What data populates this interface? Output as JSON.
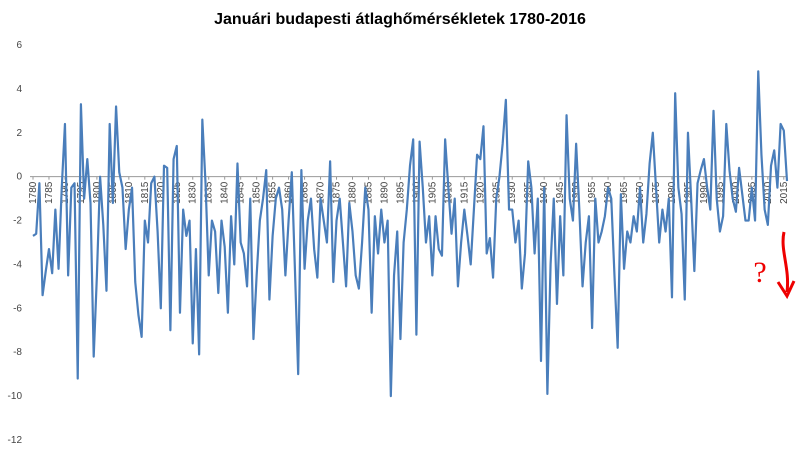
{
  "chart_data": {
    "type": "line",
    "title": "Januári budapesti átlaghőmérsékletek 1780-2016",
    "x": [
      1780,
      1781,
      1782,
      1783,
      1784,
      1785,
      1786,
      1787,
      1788,
      1789,
      1790,
      1791,
      1792,
      1793,
      1794,
      1795,
      1796,
      1797,
      1798,
      1799,
      1800,
      1801,
      1802,
      1803,
      1804,
      1805,
      1806,
      1807,
      1808,
      1809,
      1810,
      1811,
      1812,
      1813,
      1814,
      1815,
      1816,
      1817,
      1818,
      1819,
      1820,
      1821,
      1822,
      1823,
      1824,
      1825,
      1826,
      1827,
      1828,
      1829,
      1830,
      1831,
      1832,
      1833,
      1834,
      1835,
      1836,
      1837,
      1838,
      1839,
      1840,
      1841,
      1842,
      1843,
      1844,
      1845,
      1846,
      1847,
      1848,
      1849,
      1850,
      1851,
      1852,
      1853,
      1854,
      1855,
      1856,
      1857,
      1858,
      1859,
      1860,
      1861,
      1862,
      1863,
      1864,
      1865,
      1866,
      1867,
      1868,
      1869,
      1870,
      1871,
      1872,
      1873,
      1874,
      1875,
      1876,
      1877,
      1878,
      1879,
      1880,
      1881,
      1882,
      1883,
      1884,
      1885,
      1886,
      1887,
      1888,
      1889,
      1890,
      1891,
      1892,
      1893,
      1894,
      1895,
      1896,
      1897,
      1898,
      1899,
      1900,
      1901,
      1902,
      1903,
      1904,
      1905,
      1906,
      1907,
      1908,
      1909,
      1910,
      1911,
      1912,
      1913,
      1914,
      1915,
      1916,
      1917,
      1918,
      1919,
      1920,
      1921,
      1922,
      1923,
      1924,
      1925,
      1926,
      1927,
      1928,
      1929,
      1930,
      1931,
      1932,
      1933,
      1934,
      1935,
      1936,
      1937,
      1938,
      1939,
      1940,
      1941,
      1942,
      1943,
      1944,
      1945,
      1946,
      1947,
      1948,
      1949,
      1950,
      1951,
      1952,
      1953,
      1954,
      1955,
      1956,
      1957,
      1958,
      1959,
      1960,
      1961,
      1962,
      1963,
      1964,
      1965,
      1966,
      1967,
      1968,
      1969,
      1970,
      1971,
      1972,
      1973,
      1974,
      1975,
      1976,
      1977,
      1978,
      1979,
      1980,
      1981,
      1982,
      1983,
      1984,
      1985,
      1986,
      1987,
      1988,
      1989,
      1990,
      1991,
      1992,
      1993,
      1994,
      1995,
      1996,
      1997,
      1998,
      1999,
      2000,
      2001,
      2002,
      2003,
      2004,
      2005,
      2006,
      2007,
      2008,
      2009,
      2010,
      2011,
      2012,
      2013,
      2014,
      2015,
      2016
    ],
    "values": [
      -2.7,
      -2.6,
      -0.3,
      -5.4,
      -4.3,
      -3.3,
      -4.4,
      -1.5,
      -4.2,
      -0.5,
      2.4,
      -4.5,
      -0.5,
      -0.3,
      -9.2,
      3.3,
      -1.0,
      0.8,
      -1.2,
      -8.2,
      -4.5,
      0.0,
      -2.2,
      -5.2,
      2.4,
      -1.2,
      3.2,
      0.2,
      -0.5,
      -3.3,
      -1.5,
      -0.5,
      -4.8,
      -6.3,
      -7.3,
      -2.0,
      -3.0,
      -0.3,
      0.0,
      -2.5,
      -6.0,
      0.5,
      0.4,
      -7.0,
      0.8,
      1.4,
      -6.2,
      -1.5,
      -2.7,
      -2.0,
      -7.6,
      -3.3,
      -8.1,
      2.6,
      -0.3,
      -4.5,
      -2.0,
      -2.5,
      -5.3,
      -2.0,
      -3.2,
      -6.2,
      -1.8,
      -4.0,
      0.6,
      -3.0,
      -3.5,
      -5.0,
      -1.0,
      -7.4,
      -4.5,
      -2.0,
      -1.0,
      0.3,
      -5.6,
      -2.7,
      -1.0,
      -0.5,
      -1.5,
      -4.5,
      -2.0,
      0.2,
      -4.3,
      -9.0,
      0.3,
      -4.2,
      -2.0,
      -1.0,
      -3.3,
      -4.6,
      -1.0,
      -2.0,
      -3.0,
      0.7,
      -4.8,
      -2.0,
      -1.0,
      -3.0,
      -5.0,
      -1.2,
      -2.5,
      -4.5,
      -5.1,
      -3.0,
      -0.5,
      -1.5,
      -6.2,
      -1.8,
      -3.5,
      -1.5,
      -3.0,
      -2.0,
      -10.0,
      -4.5,
      -2.5,
      -7.4,
      -3.0,
      -1.5,
      0.5,
      1.7,
      -7.2,
      1.6,
      -0.5,
      -3.0,
      -1.8,
      -4.5,
      -1.8,
      -3.3,
      -3.6,
      1.7,
      -0.5,
      -2.6,
      -1.0,
      -5.0,
      -3.0,
      -1.5,
      -2.7,
      -4.0,
      -1.5,
      1.0,
      0.8,
      2.3,
      -3.5,
      -2.8,
      -4.6,
      -1.0,
      0.0,
      1.5,
      3.5,
      -1.5,
      -1.5,
      -3.0,
      -2.0,
      -5.1,
      -3.5,
      0.7,
      -0.5,
      -3.5,
      -1.0,
      -8.4,
      -0.5,
      -9.9,
      -4.0,
      -1.0,
      -5.8,
      -1.8,
      -4.5,
      2.8,
      -1.0,
      -2.0,
      1.5,
      -1.5,
      -5.0,
      -3.0,
      -1.8,
      -6.9,
      -1.0,
      -3.0,
      -2.5,
      -1.8,
      -0.5,
      -1.0,
      -4.5,
      -7.8,
      -0.8,
      -4.2,
      -2.5,
      -3.0,
      -1.8,
      -2.5,
      -0.5,
      -3.0,
      -1.7,
      0.6,
      2.0,
      -0.5,
      -3.0,
      -1.5,
      -2.5,
      -1.0,
      -5.5,
      3.8,
      -0.5,
      -1.7,
      -5.6,
      2.0,
      -1.0,
      -4.3,
      -0.3,
      0.3,
      0.8,
      -0.5,
      -1.5,
      3.0,
      -1.0,
      -2.5,
      -1.8,
      2.4,
      0.3,
      -1.0,
      -1.6,
      0.4,
      -0.8,
      -2.0,
      -2.0,
      -0.5,
      -2.0,
      4.8,
      1.0,
      -1.5,
      -2.2,
      0.5,
      1.2,
      -0.5,
      2.4,
      2.1,
      -0.2
    ],
    "color": "#4a7ebb",
    "xlim": [
      1780,
      2016
    ],
    "xticks": [
      1780,
      1785,
      1790,
      1795,
      1800,
      1805,
      1810,
      1815,
      1820,
      1825,
      1830,
      1835,
      1840,
      1845,
      1850,
      1855,
      1860,
      1865,
      1870,
      1875,
      1880,
      1885,
      1890,
      1895,
      1900,
      1905,
      1910,
      1915,
      1920,
      1925,
      1930,
      1935,
      1940,
      1945,
      1950,
      1955,
      1960,
      1965,
      1970,
      1975,
      1980,
      1985,
      1990,
      1995,
      2000,
      2005,
      2010,
      2015
    ],
    "ylim": [
      -12,
      6
    ],
    "yticks": [
      6,
      4,
      2,
      0,
      -2,
      -4,
      -6,
      -8,
      -10,
      -12
    ],
    "grid": false,
    "annotation": "?"
  }
}
